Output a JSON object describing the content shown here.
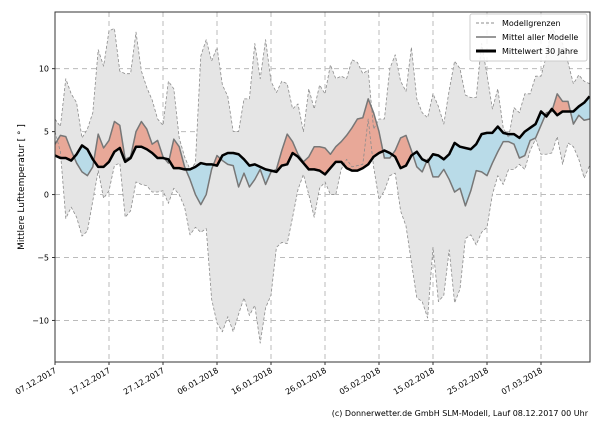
{
  "chart_data": {
    "type": "area",
    "ylabel": "Mittlere Lufttemperatur [ ° ]",
    "xlabel": "",
    "ylim": [
      -13.3,
      14.5
    ],
    "yticks": [
      -10,
      -5,
      0,
      5,
      10
    ],
    "xtick_labels": [
      "07.12.2017",
      "17.12.2017",
      "27.12.2017",
      "06.01.2018",
      "16.01.2018",
      "26.01.2018",
      "05.02.2018",
      "15.02.2018",
      "25.02.2018",
      "07.03.2018"
    ],
    "grid": true,
    "legend_position": "top-right",
    "legend": [
      "Modellgrenzen",
      "Mittel aller Modelle",
      "Mittelwert 30 Jahre"
    ],
    "colors": {
      "range_fill": "#e5e5e5",
      "range_edge": "#8c8c8c",
      "model_mean": "#777777",
      "climate_mean": "#000000",
      "above": "#e8a898",
      "below": "#b9dbe8"
    },
    "x_start": "2017-12-07",
    "x_end": "2018-03-16",
    "upper": [
      6.0,
      5.4,
      9.2,
      8.0,
      7.3,
      4.5,
      5.2,
      6.5,
      11.5,
      10.2,
      13.0,
      13.2,
      9.8,
      9.6,
      9.6,
      12.9,
      9.8,
      8.5,
      7.5,
      6.0,
      5.5,
      9.0,
      8.4,
      4.5,
      3.0,
      2.0,
      2.5,
      11.0,
      12.3,
      10.6,
      11.7,
      8.7,
      7.8,
      5.0,
      5.0,
      7.6,
      7.6,
      12.0,
      9.2,
      12.3,
      9.0,
      8.1,
      9.0,
      8.8,
      6.8,
      7.2,
      5.0,
      8.4,
      6.8,
      8.7,
      8.0,
      10.3,
      9.2,
      9.4,
      9.2,
      10.7,
      10.5,
      9.6,
      9.9,
      5.2,
      6.0,
      6.0,
      10.0,
      11.1,
      9.0,
      8.2,
      11.7,
      7.6,
      6.5,
      6.1,
      8.0,
      7.0,
      5.6,
      8.3,
      10.6,
      10.0,
      7.9,
      7.7,
      7.7,
      12.0,
      9.5,
      6.8,
      8.4,
      5.3,
      4.5,
      6.9,
      6.5,
      8.0,
      8.0,
      9.4,
      9.4,
      11.0,
      13.3,
      12.5,
      12.0,
      10.5,
      8.8,
      9.5,
      9.0,
      8.8
    ],
    "lower": [
      5.0,
      3.4,
      -1.9,
      -1.0,
      -1.8,
      -3.3,
      -2.9,
      -0.5,
      1.9,
      -0.3,
      0.3,
      2.3,
      2.5,
      -1.8,
      -1.3,
      1.0,
      0.8,
      0.7,
      0.2,
      0.2,
      0.3,
      -0.7,
      0.5,
      0.0,
      -1.0,
      -3.2,
      -2.6,
      -3.0,
      -2.7,
      -8.3,
      -10.2,
      -10.9,
      -9.7,
      -10.9,
      -9.5,
      -8.2,
      -9.6,
      -8.8,
      -11.8,
      -9.0,
      -8.0,
      -4.2,
      -3.8,
      -3.9,
      -1.8,
      0.4,
      1.6,
      0.0,
      -1.8,
      0.5,
      1.0,
      0.0,
      0.0,
      2.0,
      2.8,
      2.2,
      2.3,
      2.4,
      6.0,
      2.2,
      -0.4,
      0.3,
      1.5,
      1.7,
      -1.3,
      -2.5,
      -5.4,
      -8.2,
      -8.5,
      -9.8,
      -4.2,
      -8.5,
      -8.0,
      -4.4,
      -8.6,
      -7.5,
      -3.5,
      -3.2,
      -4.0,
      -3.0,
      -2.6,
      0.0,
      1.5,
      0.8,
      2.0,
      2.0,
      2.4,
      2.0,
      3.5,
      4.4,
      3.2,
      3.2,
      3.3,
      4.6,
      2.4,
      4.1,
      3.8,
      2.8,
      1.3,
      2.3
    ],
    "model_mean": [
      4.0,
      4.7,
      4.6,
      3.5,
      2.5,
      1.8,
      1.5,
      2.2,
      4.8,
      3.7,
      4.3,
      5.8,
      5.5,
      2.8,
      3.0,
      5.0,
      5.8,
      5.2,
      4.0,
      4.3,
      3.0,
      2.5,
      4.4,
      3.8,
      2.2,
      1.2,
      0.0,
      -0.8,
      0.0,
      2.0,
      3.1,
      2.7,
      2.4,
      2.3,
      0.6,
      1.7,
      0.6,
      1.2,
      2.0,
      0.8,
      1.8,
      2.0,
      3.5,
      4.8,
      4.2,
      3.2,
      2.6,
      3.0,
      3.8,
      3.8,
      3.7,
      3.2,
      3.8,
      4.2,
      4.7,
      5.3,
      6.0,
      6.1,
      7.6,
      6.5,
      5.0,
      2.9,
      2.9,
      3.5,
      4.5,
      4.7,
      3.5,
      2.2,
      1.8,
      2.8,
      1.4,
      1.4,
      2.0,
      1.2,
      0.2,
      0.5,
      -0.9,
      0.3,
      1.9,
      1.8,
      1.5,
      2.5,
      3.4,
      4.2,
      4.2,
      4.0,
      2.9,
      3.1,
      4.3,
      4.5,
      5.5,
      6.5,
      6.6,
      8.0,
      7.4,
      7.4,
      5.6,
      6.3,
      5.9,
      6.0
    ],
    "climate_mean": [
      3.1,
      2.9,
      2.9,
      2.7,
      3.2,
      3.9,
      3.6,
      2.8,
      2.2,
      2.2,
      2.6,
      3.4,
      3.7,
      2.6,
      2.9,
      3.8,
      3.8,
      3.6,
      3.3,
      2.9,
      2.9,
      2.8,
      2.1,
      2.1,
      2.0,
      2.0,
      2.2,
      2.5,
      2.4,
      2.4,
      2.3,
      3.1,
      3.3,
      3.3,
      3.2,
      2.8,
      2.3,
      2.4,
      2.2,
      2.0,
      1.9,
      1.8,
      2.3,
      2.4,
      3.3,
      3.0,
      2.5,
      2.0,
      2.0,
      1.9,
      1.6,
      2.1,
      2.6,
      2.6,
      2.1,
      1.9,
      1.9,
      2.1,
      2.4,
      3.0,
      3.3,
      3.5,
      3.3,
      3.0,
      2.1,
      2.3,
      3.1,
      3.4,
      2.8,
      2.6,
      3.2,
      3.1,
      2.8,
      3.2,
      4.1,
      3.8,
      3.7,
      3.6,
      4.0,
      4.8,
      4.9,
      4.9,
      5.4,
      4.9,
      4.8,
      4.8,
      4.5,
      5.0,
      5.3,
      5.6,
      6.6,
      6.2,
      6.8,
      6.3,
      6.6,
      6.6,
      6.6,
      7.0,
      7.3,
      7.8
    ]
  },
  "footer": {
    "credit": "(c) Donnerwetter.de GmbH SLM-Modell, Lauf 08.12.2017 00 Uhr"
  }
}
